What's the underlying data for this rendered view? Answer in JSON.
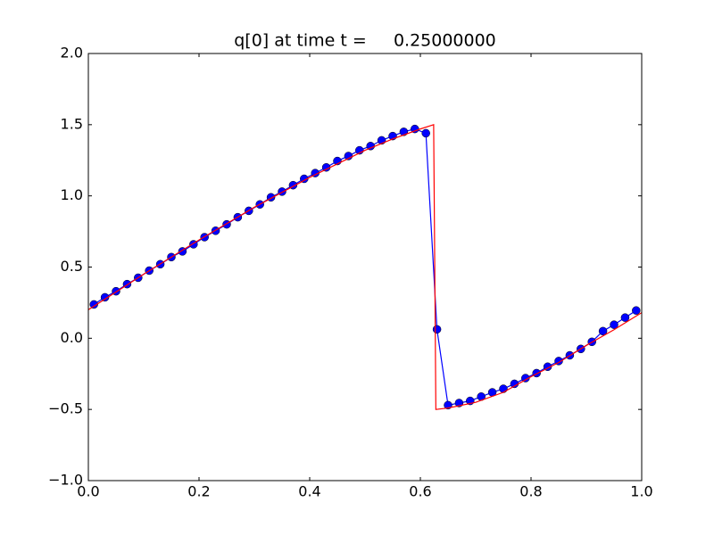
{
  "chart_data": {
    "type": "line",
    "title": "q[0] at time t =     0.25000000",
    "xlim": [
      0,
      1
    ],
    "ylim": [
      -1,
      2
    ],
    "xticks": [
      {
        "value": 0,
        "label": "0.0"
      },
      {
        "value": 0.2,
        "label": "0.2"
      },
      {
        "value": 0.4,
        "label": "0.4"
      },
      {
        "value": 0.6,
        "label": "0.6"
      },
      {
        "value": 0.8,
        "label": "0.8"
      },
      {
        "value": 1,
        "label": "1.0"
      }
    ],
    "yticks": [
      {
        "value": -1,
        "label": "−1.0"
      },
      {
        "value": -0.5,
        "label": "−0.5"
      },
      {
        "value": 0,
        "label": "0.0"
      },
      {
        "value": 0.5,
        "label": "0.5"
      },
      {
        "value": 1,
        "label": "1.0"
      },
      {
        "value": 1.5,
        "label": "1.5"
      },
      {
        "value": 2,
        "label": "2.0"
      }
    ],
    "series": [
      {
        "color": "#0000ff",
        "marker": "o",
        "x": [
          0.01,
          0.03,
          0.05,
          0.07,
          0.09,
          0.11,
          0.13,
          0.15,
          0.17,
          0.19,
          0.21,
          0.23,
          0.25,
          0.27,
          0.29,
          0.31,
          0.33,
          0.35,
          0.37,
          0.39,
          0.41,
          0.43,
          0.45,
          0.47,
          0.49,
          0.51,
          0.53,
          0.55,
          0.57,
          0.59,
          0.61,
          0.63,
          0.65,
          0.67,
          0.69,
          0.71,
          0.73,
          0.75,
          0.77,
          0.79,
          0.81,
          0.83,
          0.85,
          0.87,
          0.89,
          0.91,
          0.93,
          0.95,
          0.97,
          0.99
        ],
        "values": [
          0.2375,
          0.2875,
          0.33,
          0.38,
          0.425,
          0.475,
          0.52,
          0.57,
          0.61,
          0.66,
          0.71,
          0.755,
          0.8,
          0.85,
          0.895,
          0.94,
          0.99,
          1.03,
          1.075,
          1.12,
          1.16,
          1.2,
          1.245,
          1.28,
          1.32,
          1.35,
          1.39,
          1.42,
          1.45,
          1.47,
          1.44,
          0.0625,
          -0.47,
          -0.455,
          -0.44,
          -0.41,
          -0.38,
          -0.355,
          -0.32,
          -0.28,
          -0.245,
          -0.2,
          -0.16,
          -0.12,
          -0.075,
          -0.025,
          0.05,
          0.095,
          0.145,
          0.195
        ]
      },
      {
        "color": "#ff0000",
        "x": [
          0,
          0.1,
          0.2,
          0.3,
          0.4,
          0.5,
          0.55,
          0.6,
          0.624,
          0.628,
          0.65,
          0.7,
          0.75,
          0.8,
          0.85,
          0.9,
          0.95,
          1
        ],
        "values": [
          0.2,
          0.45,
          0.69,
          0.92,
          1.13,
          1.32,
          1.4,
          1.47,
          1.5,
          -0.5,
          -0.49,
          -0.45,
          -0.38,
          -0.27,
          -0.17,
          -0.05,
          0.06,
          0.18
        ]
      }
    ]
  }
}
